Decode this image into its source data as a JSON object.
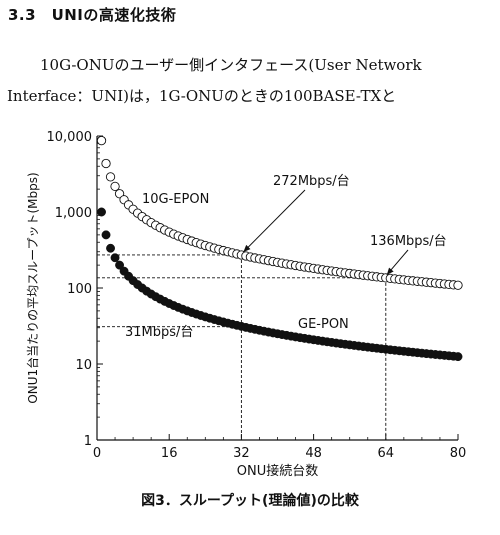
{
  "section": {
    "heading": "3.3　UNIの高速化技術"
  },
  "paragraph": {
    "line1": "10G-ONUのユーザー側インタフェース(User Network",
    "line2": "Interface：UNI)は，1G-ONUのときの100BASE-TXと"
  },
  "figure": {
    "caption": "図3．スループット(理論値)の比較"
  },
  "chart_data": {
    "type": "scatter",
    "xlabel": "ONU接続台数",
    "ylabel": "ONU1台当たりの平均スループット(Mbps)",
    "xlim": [
      0,
      80
    ],
    "ylim": [
      1,
      10000
    ],
    "y_scale": "log",
    "x_ticks": [
      "0",
      "16",
      "32",
      "48",
      "64",
      "80"
    ],
    "y_ticks": [
      "1",
      "10",
      "100",
      "1,000",
      "10,000"
    ],
    "series": [
      {
        "name": "10G-EPON",
        "marker": "open-circle",
        "capacity_mbps": 8700,
        "x": [
          1,
          80
        ]
      },
      {
        "name": "GE-PON",
        "marker": "filled-circle",
        "capacity_mbps": 1000,
        "x": [
          1,
          80
        ]
      }
    ],
    "annotations": [
      {
        "text": "272Mbps/台",
        "x": 32,
        "y": 272
      },
      {
        "text": "136Mbps/台",
        "x": 64,
        "y": 136
      },
      {
        "text": "31Mbps/台",
        "x": 32,
        "y": 31
      }
    ]
  }
}
